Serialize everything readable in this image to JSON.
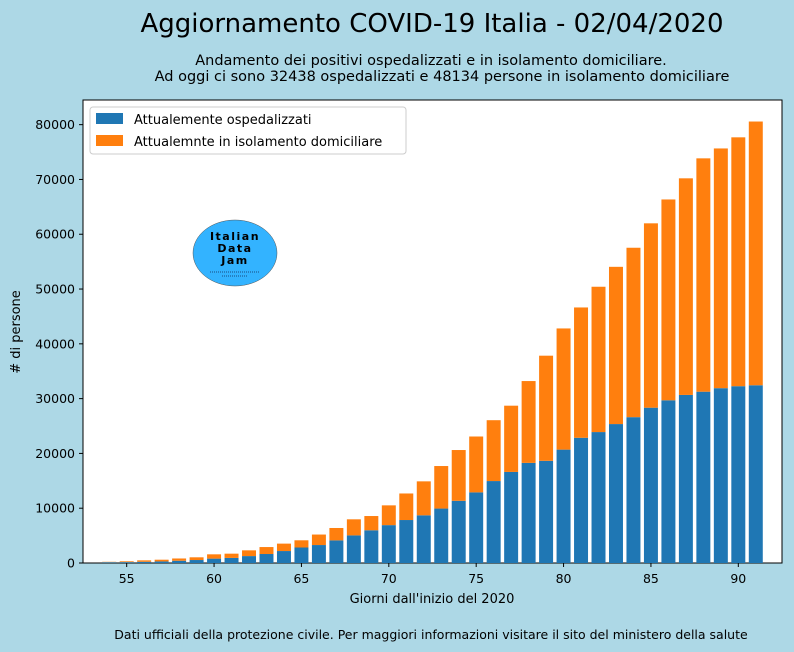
{
  "title": "Aggiornamento COVID-19 Italia - 02/04/2020",
  "subtitle_line1": "Andamento dei positivi ospedalizzati e in isolamento domiciliare.",
  "subtitle_line2": "Ad oggi ci sono 32438 ospedalizzati e 48134 persone in isolamento domiciliare",
  "footer": "Dati ufficiali della protezione civile. Per maggiori informazioni visitare il sito del ministero della salute",
  "logo": {
    "line1": "Italian",
    "line2": "Data",
    "line3": "Jam",
    "color": "#33b3ff"
  },
  "colors": {
    "background": "#add8e6",
    "hospitalized": "#1f77b4",
    "home_isolation": "#ff7f0e"
  },
  "chart_data": {
    "type": "bar",
    "stacked": true,
    "xlabel": "Giorni dall'inizio del 2020",
    "ylabel": "# di persone",
    "xlim": [
      52.5,
      92.5
    ],
    "ylim": [
      0,
      84500
    ],
    "xticks": [
      55,
      60,
      65,
      70,
      75,
      80,
      85,
      90
    ],
    "yticks": [
      0,
      10000,
      20000,
      30000,
      40000,
      50000,
      60000,
      70000,
      80000
    ],
    "legend_position": "top-left",
    "grid": false,
    "x": [
      54,
      55,
      56,
      57,
      58,
      59,
      60,
      61,
      62,
      63,
      64,
      65,
      66,
      67,
      68,
      69,
      70,
      71,
      72,
      73,
      74,
      75,
      76,
      77,
      78,
      79,
      80,
      81,
      82,
      83,
      84,
      85,
      86,
      87,
      88,
      89,
      90,
      91
    ],
    "series": [
      {
        "name": "Attualemente ospedalizzati",
        "values": [
          150,
          162,
          221,
          284,
          412,
          543,
          798,
          927,
          1263,
          1641,
          2183,
          2828,
          3278,
          4128,
          5038,
          5972,
          6911,
          7843,
          8701,
          9935,
          11350,
          12890,
          14955,
          16620,
          18270,
          18650,
          20692,
          22855,
          23896,
          25356,
          26615,
          28344,
          29694,
          30672,
          31264,
          31906,
          32267,
          32438
        ]
      },
      {
        "name": "Attualemnte in isolamento domiciliare",
        "values": [
          71,
          149,
          263,
          317,
          413,
          496,
          785,
          776,
          1048,
          1270,
          1353,
          1316,
          1916,
          2262,
          2935,
          2601,
          3609,
          4845,
          6201,
          7763,
          9268,
          10197,
          11108,
          12090,
          14935,
          19185,
          22116,
          23783,
          26522,
          28697,
          30920,
          33648,
          36653,
          39533,
          42588,
          43752,
          45420,
          48134
        ]
      }
    ]
  }
}
